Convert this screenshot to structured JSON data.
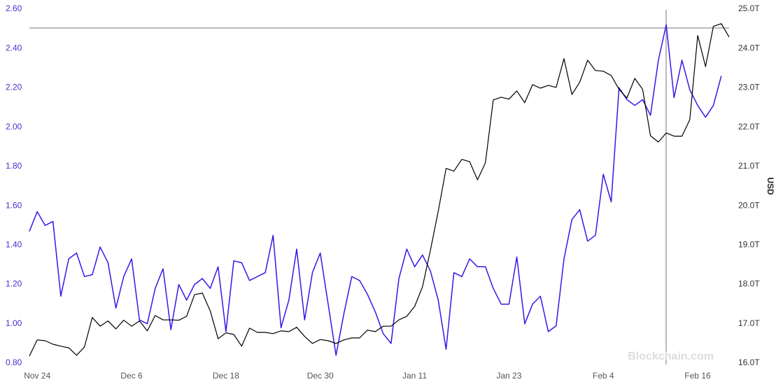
{
  "chart_data": {
    "type": "line",
    "categories": [
      null,
      "Nov 24",
      null,
      null,
      null,
      null,
      null,
      null,
      null,
      null,
      null,
      null,
      null,
      "Dec 6",
      null,
      null,
      null,
      null,
      null,
      null,
      null,
      null,
      null,
      null,
      null,
      "Dec 18",
      null,
      null,
      null,
      null,
      null,
      null,
      null,
      null,
      null,
      null,
      null,
      "Dec 30",
      null,
      null,
      null,
      null,
      null,
      null,
      null,
      null,
      null,
      null,
      null,
      "Jan 11",
      null,
      null,
      null,
      null,
      null,
      null,
      null,
      null,
      null,
      null,
      null,
      "Jan 23",
      null,
      null,
      null,
      null,
      null,
      null,
      null,
      null,
      null,
      null,
      null,
      "Feb 4",
      null,
      null,
      null,
      null,
      null,
      null,
      null,
      null,
      null,
      null,
      null,
      "Feb 16",
      null,
      null,
      null,
      null
    ],
    "series": [
      {
        "color": "#3a16e6",
        "values": [
          1.47,
          1.57,
          1.5,
          1.52,
          1.14,
          1.33,
          1.36,
          1.24,
          1.25,
          1.39,
          1.31,
          1.08,
          1.24,
          1.33,
          1.02,
          1.0,
          1.18,
          1.28,
          0.97,
          1.2,
          1.12,
          1.2,
          1.23,
          1.18,
          1.29,
          0.96,
          1.32,
          1.31,
          1.22,
          1.24,
          1.26,
          1.45,
          0.98,
          1.12,
          1.38,
          1.02,
          1.26,
          1.36,
          1.1,
          0.84,
          1.05,
          1.24,
          1.22,
          1.15,
          1.06,
          0.95,
          0.9,
          1.23,
          1.38,
          1.29,
          1.35,
          1.27,
          1.12,
          0.87,
          1.26,
          1.24,
          1.33,
          1.29,
          1.29,
          1.18,
          1.1,
          1.1,
          1.34,
          1.0,
          1.1,
          1.14,
          0.96,
          0.99,
          1.33,
          1.53,
          1.58,
          1.42,
          1.45,
          1.76,
          1.62,
          2.2,
          2.14,
          2.11,
          2.14,
          2.06,
          2.34,
          2.52,
          2.15,
          2.34,
          2.19,
          2.11,
          2.05,
          2.11,
          2.26,
          null
        ]
      },
      {
        "color": "#000000",
        "axis": "y2",
        "values": [
          16.18,
          16.59,
          16.57,
          16.48,
          16.43,
          16.39,
          16.2,
          16.41,
          17.16,
          16.94,
          17.07,
          16.87,
          17.09,
          16.94,
          17.07,
          16.82,
          17.21,
          17.1,
          17.1,
          17.09,
          17.19,
          17.74,
          17.78,
          17.33,
          16.62,
          16.77,
          16.73,
          16.43,
          16.89,
          16.78,
          16.78,
          16.75,
          16.82,
          16.8,
          16.91,
          16.68,
          16.5,
          16.6,
          16.57,
          16.5,
          16.59,
          16.64,
          16.64,
          16.84,
          16.8,
          16.94,
          16.94,
          17.1,
          17.19,
          17.44,
          17.94,
          18.86,
          19.86,
          20.95,
          20.88,
          21.18,
          21.12,
          20.66,
          21.09,
          22.69,
          22.76,
          22.71,
          22.92,
          22.62,
          23.08,
          22.99,
          23.06,
          23.01,
          23.74,
          22.83,
          23.14,
          23.7,
          23.44,
          23.42,
          23.31,
          22.96,
          22.74,
          23.24,
          22.96,
          21.78,
          21.62,
          21.85,
          21.77,
          21.77,
          22.19,
          24.33,
          23.54,
          24.56,
          24.63,
          24.29
        ]
      }
    ],
    "ylim": [
      0.8,
      2.6
    ],
    "yticks": [
      {
        "value": 0.8,
        "label": "0.80"
      },
      {
        "value": 1,
        "label": "1.00"
      },
      {
        "value": 1.2,
        "label": "1.20"
      },
      {
        "value": 1.4,
        "label": "1.40"
      },
      {
        "value": 1.6,
        "label": "1.60"
      },
      {
        "value": 1.8,
        "label": "1.80"
      },
      {
        "value": 2,
        "label": "2.00"
      },
      {
        "value": 2.2,
        "label": "2.20"
      },
      {
        "value": 2.4,
        "label": "2.40"
      },
      {
        "value": 2.6,
        "label": "2.60"
      }
    ],
    "y2lim": [
      16,
      25
    ],
    "y2ticks": [
      {
        "value": 16,
        "label": "16.0T"
      },
      {
        "value": 17,
        "label": "17.0T"
      },
      {
        "value": 18,
        "label": "18.0T"
      },
      {
        "value": 19,
        "label": "19.0T"
      },
      {
        "value": 20,
        "label": "20.0T"
      },
      {
        "value": 21,
        "label": "21.0T"
      },
      {
        "value": 22,
        "label": "22.0T"
      },
      {
        "value": 23,
        "label": "23.0T"
      },
      {
        "value": 24,
        "label": "24.0T"
      },
      {
        "value": 25,
        "label": "25.0T"
      }
    ],
    "y2_label": "USD",
    "watermark": "Blockchain.com"
  }
}
